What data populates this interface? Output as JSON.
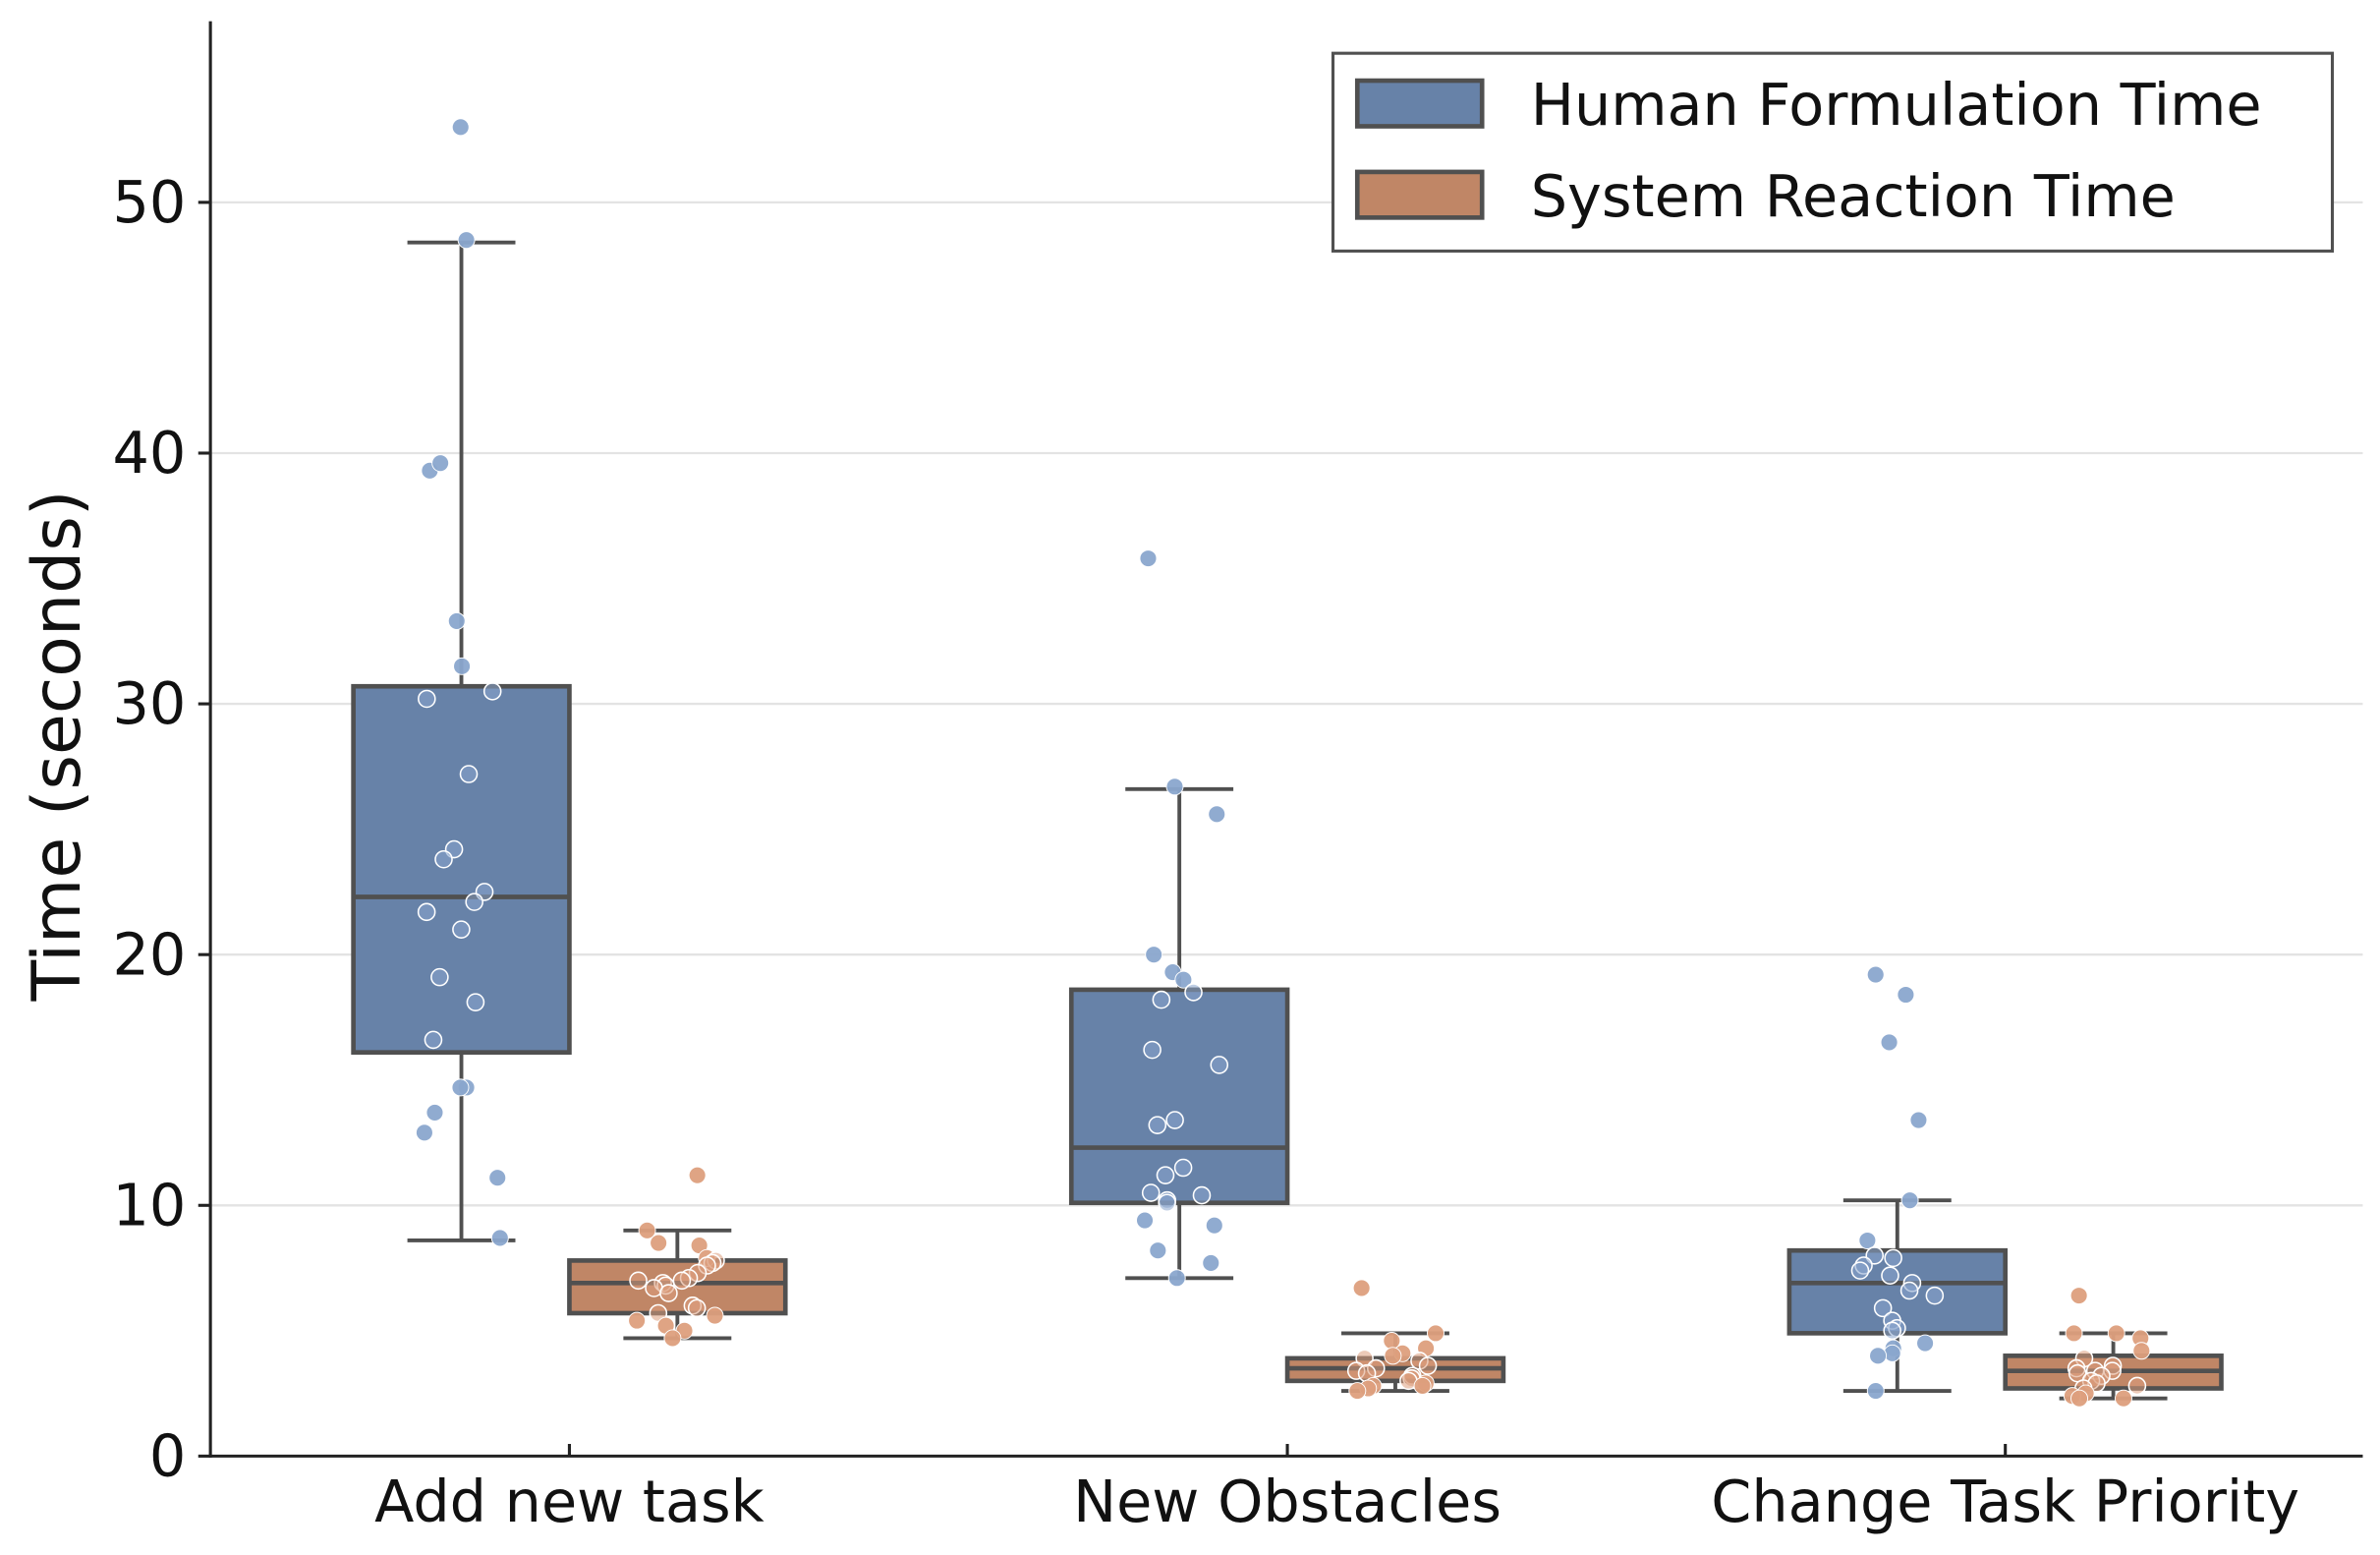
{
  "chart_data": {
    "type": "box",
    "title": "",
    "xlabel": "",
    "ylabel": "Time (seconds)",
    "ylim": [
      0,
      57
    ],
    "yticks": [
      0,
      10,
      20,
      30,
      40,
      50
    ],
    "grid": "horizontal",
    "legend_placement": "top-right",
    "categories": [
      "Add new task",
      "New Obstacles",
      "Change Task Priority"
    ],
    "series": [
      {
        "name": "Human Formulation Time",
        "box_color": "#6782a8",
        "point_color": "#8aa6cd",
        "boxes": [
          {
            "whisker_low": 8.6,
            "q1": 16.1,
            "median": 22.3,
            "q3": 30.7,
            "whisker_high": 48.4
          },
          {
            "whisker_low": 7.1,
            "q1": 10.1,
            "median": 12.3,
            "q3": 18.6,
            "whisker_high": 26.6
          },
          {
            "whisker_low": 2.6,
            "q1": 4.9,
            "median": 6.9,
            "q3": 8.2,
            "whisker_high": 10.2
          }
        ],
        "points": [
          [
            53.0,
            48.5,
            39.3,
            39.6,
            33.3,
            31.5,
            30.2,
            30.5,
            27.2,
            24.2,
            23.8,
            22.5,
            22.1,
            21.7,
            21.0,
            19.1,
            18.1,
            16.6,
            14.7,
            14.7,
            13.7,
            12.9,
            11.1,
            8.7
          ],
          [
            35.8,
            26.7,
            25.6,
            20.0,
            19.3,
            19.0,
            18.5,
            18.2,
            16.2,
            15.6,
            13.4,
            13.2,
            11.5,
            11.2,
            10.5,
            10.4,
            10.2,
            10.1,
            9.4,
            9.2,
            8.2,
            7.7,
            7.1
          ],
          [
            19.2,
            18.4,
            16.5,
            13.4,
            10.2,
            8.6,
            8.0,
            7.9,
            7.6,
            7.4,
            7.2,
            6.9,
            6.6,
            6.4,
            5.9,
            5.4,
            5.1,
            5.0,
            4.5,
            4.3,
            4.1,
            4.0,
            2.6
          ]
        ]
      },
      {
        "name": "System Reaction Time",
        "box_color": "#c08666",
        "point_color": "#dd9f7d",
        "boxes": [
          {
            "whisker_low": 4.7,
            "q1": 5.7,
            "median": 6.9,
            "q3": 7.8,
            "whisker_high": 9.0
          },
          {
            "whisker_low": 2.6,
            "q1": 3.0,
            "median": 3.5,
            "q3": 3.9,
            "whisker_high": 4.9
          },
          {
            "whisker_low": 2.3,
            "q1": 2.7,
            "median": 3.4,
            "q3": 4.0,
            "whisker_high": 4.9
          }
        ],
        "points": [
          [
            11.2,
            9.0,
            8.5,
            8.4,
            7.9,
            7.8,
            7.7,
            7.6,
            7.3,
            7.1,
            7.0,
            7.0,
            6.9,
            6.8,
            6.7,
            6.5,
            6.0,
            5.9,
            5.7,
            5.6,
            5.4,
            5.2,
            5.0,
            4.7
          ],
          [
            6.7,
            4.9,
            4.6,
            4.3,
            4.1,
            4.0,
            3.9,
            3.8,
            3.6,
            3.5,
            3.4,
            3.3,
            3.2,
            3.1,
            3.0,
            2.9,
            2.8,
            2.8,
            2.7,
            2.6
          ],
          [
            6.4,
            4.9,
            4.9,
            4.7,
            4.2,
            3.9,
            3.6,
            3.5,
            3.4,
            3.4,
            3.3,
            3.2,
            3.0,
            2.9,
            2.8,
            2.7,
            2.5,
            2.4,
            2.3,
            2.3
          ]
        ]
      }
    ],
    "edge_color": "#505050"
  }
}
